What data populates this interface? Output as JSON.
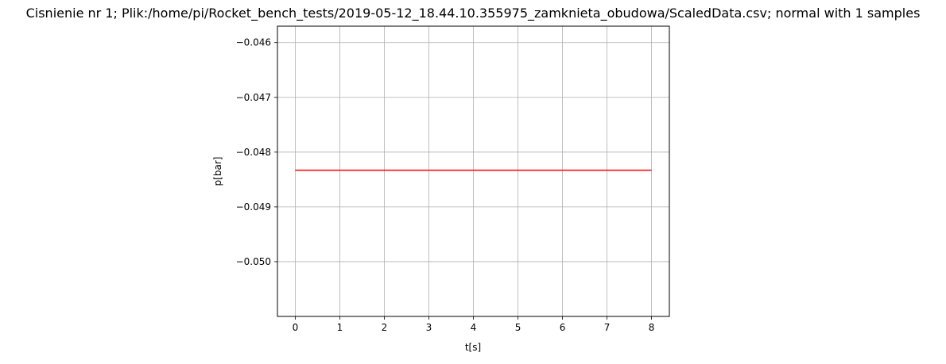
{
  "chart_data": {
    "type": "line",
    "title": "Cisnienie nr 1; Plik:/home/pi/Rocket_bench_tests/2019-05-12_18.44.10.355975_zamknieta_obudowa/ScaledData.csv; normal with 1 samples",
    "xlabel": "t[s]",
    "ylabel": "p[bar]",
    "xlim": [
      -0.4,
      8.4
    ],
    "ylim": [
      -0.051,
      -0.0457
    ],
    "x_ticks": [
      0,
      1,
      2,
      3,
      4,
      5,
      6,
      7,
      8
    ],
    "x_tick_labels": [
      "0",
      "1",
      "2",
      "3",
      "4",
      "5",
      "6",
      "7",
      "8"
    ],
    "y_ticks": [
      -0.05,
      -0.049,
      -0.048,
      -0.047,
      -0.046
    ],
    "y_tick_labels": [
      "−0.050",
      "−0.049",
      "−0.048",
      "−0.047",
      "−0.046"
    ],
    "grid": true,
    "series": [
      {
        "color": "#ff0000",
        "x": [
          0,
          8
        ],
        "y": [
          -0.04833,
          -0.04833
        ]
      }
    ]
  }
}
